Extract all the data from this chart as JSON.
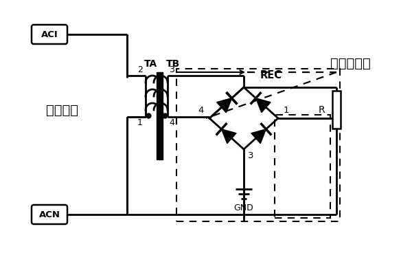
{
  "bg_color": "#ffffff",
  "label_ACI": "ACI",
  "label_ACN": "ACN",
  "label_TA": "TA",
  "label_TB": "TB",
  "label_REC": "REC",
  "label_GND": "GND",
  "label_R": "R",
  "label_market": "市电输入",
  "label_neg_half": "负半周通路",
  "label_2": "2",
  "label_1_left": "1",
  "label_3": "3",
  "label_4": "4",
  "label_1_right": "1",
  "label_3_bottom": "3"
}
